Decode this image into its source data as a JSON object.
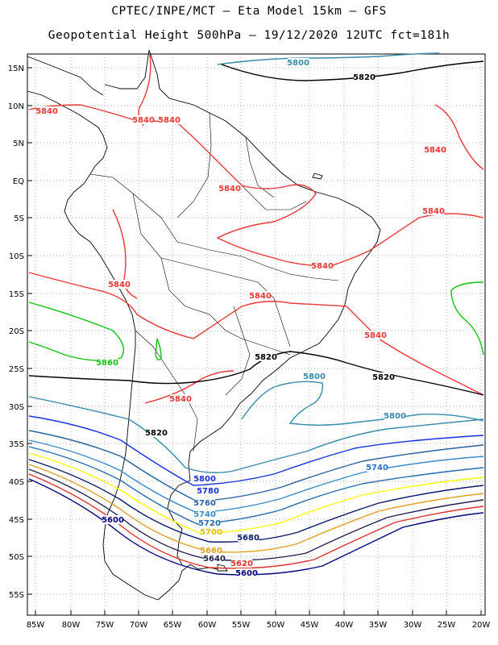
{
  "header": {
    "line1": "CPTEC/INPE/MCT –  Eta Model 15km – GFS",
    "line2": "Geopotential Height 500hPa – 19/12/2020 12UTC fct=181h"
  },
  "lat_labels": [
    "15N",
    "10N",
    "5N",
    "EQ",
    "5S",
    "10S",
    "15S",
    "20S",
    "25S",
    "30S",
    "35S",
    "40S",
    "45S",
    "50S",
    "55S"
  ],
  "lon_labels": [
    "85W",
    "80W",
    "75W",
    "70W",
    "65W",
    "60W",
    "55W",
    "50W",
    "45W",
    "40W",
    "35W",
    "30W",
    "25W",
    "20W"
  ],
  "colors": {
    "c5500": "#00007a",
    "c5520": "#e03030",
    "c5540": "#202050",
    "c5560": "#e0a020",
    "c5580": "#0a1a6a",
    "c5600": "#ffff00",
    "c5620": "#2a6aaa",
    "c5640": "#3a8ac8",
    "c5660": "#3070c0",
    "c5680": "#2a60a0",
    "c5700": "#1a30e0",
    "c5800": "#3a8aaa",
    "c5820": "#000000",
    "c5840": "#e83838",
    "c5860": "#10c010"
  },
  "contour_labels": [
    {
      "text": "5800",
      "color": "#3a8aaa"
    },
    {
      "text": "5820",
      "color": "#000000"
    },
    {
      "text": "5840",
      "color": "#e83838"
    },
    {
      "text": "5840",
      "color": "#e83838"
    },
    {
      "text": "5840",
      "color": "#e83838"
    },
    {
      "text": "5840",
      "color": "#e83838"
    },
    {
      "text": "5840",
      "color": "#e83838"
    },
    {
      "text": "5840",
      "color": "#e83838"
    },
    {
      "text": "5840",
      "color": "#e83838"
    },
    {
      "text": "5840",
      "color": "#e83838"
    },
    {
      "text": "5840",
      "color": "#e83838"
    },
    {
      "text": "5840",
      "color": "#e83838"
    },
    {
      "text": "5840",
      "color": "#e83838"
    },
    {
      "text": "5860",
      "color": "#10c010"
    },
    {
      "text": "5820",
      "color": "#000000"
    },
    {
      "text": "5820",
      "color": "#000000"
    },
    {
      "text": "5820",
      "color": "#000000"
    },
    {
      "text": "5800",
      "color": "#3a8aaa"
    },
    {
      "text": "5800",
      "color": "#3a8aaa"
    },
    {
      "text": "5800",
      "color": "#1a30e0"
    },
    {
      "text": "5740",
      "color": "#3070c0"
    },
    {
      "text": "5780",
      "color": "#1a30e0"
    },
    {
      "text": "5760",
      "color": "#2a60a0"
    },
    {
      "text": "5740",
      "color": "#3a8ac8"
    },
    {
      "text": "5720",
      "color": "#2a6aaa"
    },
    {
      "text": "5700",
      "color": "#e0c000"
    },
    {
      "text": "5680",
      "color": "#0a1a6a"
    },
    {
      "text": "5660",
      "color": "#e0a020"
    },
    {
      "text": "5640",
      "color": "#202050"
    },
    {
      "text": "5620",
      "color": "#e03030"
    },
    {
      "text": "5600",
      "color": "#00007a"
    },
    {
      "text": "5600",
      "color": "#00007a"
    }
  ]
}
